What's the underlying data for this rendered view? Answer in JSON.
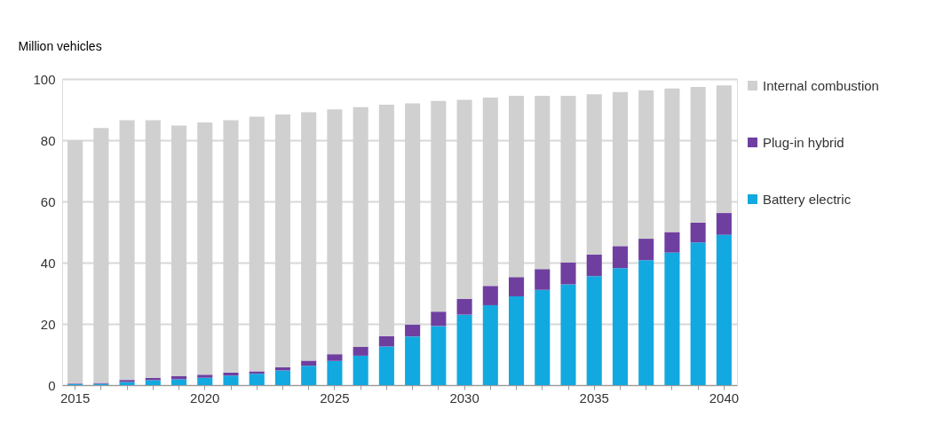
{
  "chart_data": {
    "type": "bar",
    "stacked": true,
    "ylabel": "Million vehicles",
    "categories": [
      "2015",
      null,
      null,
      null,
      null,
      "2020",
      null,
      null,
      null,
      null,
      "2025",
      null,
      null,
      null,
      null,
      "2030",
      null,
      null,
      null,
      null,
      "2035",
      null,
      null,
      null,
      null,
      "2040"
    ],
    "series": [
      {
        "name": "Battery electric",
        "color": "#12a9e0",
        "values": [
          0.3,
          0.4,
          1.0,
          1.6,
          1.9,
          2.4,
          3.1,
          3.7,
          4.8,
          6.3,
          7.9,
          9.6,
          12.6,
          15.9,
          19.3,
          23.0,
          26.1,
          29.0,
          31.1,
          32.9,
          35.6,
          38.2,
          40.8,
          43.3,
          46.6,
          49.1
        ]
      },
      {
        "name": "Plug-in hybrid",
        "color": "#6f3fa0",
        "values": [
          0.2,
          0.3,
          0.7,
          0.8,
          1.0,
          1.0,
          1.0,
          0.8,
          1.0,
          1.7,
          2.2,
          2.9,
          3.4,
          3.9,
          4.7,
          5.2,
          6.3,
          6.3,
          6.8,
          7.2,
          7.1,
          7.2,
          7.0,
          6.7,
          6.5,
          7.1
        ]
      },
      {
        "name": "Internal combustion",
        "color": "#d0d0d0",
        "values": [
          79.5,
          83.3,
          84.8,
          84.1,
          81.9,
          82.4,
          82.4,
          83.2,
          82.6,
          81.1,
          80.0,
          78.3,
          75.6,
          72.2,
          68.8,
          65.0,
          61.5,
          59.2,
          56.6,
          54.4,
          52.3,
          50.3,
          48.5,
          46.9,
          44.3,
          41.7
        ]
      }
    ],
    "ylim": [
      0,
      100
    ],
    "yticks": [
      0,
      20,
      40,
      60,
      80,
      100
    ],
    "grid": "y",
    "legend": "right"
  }
}
